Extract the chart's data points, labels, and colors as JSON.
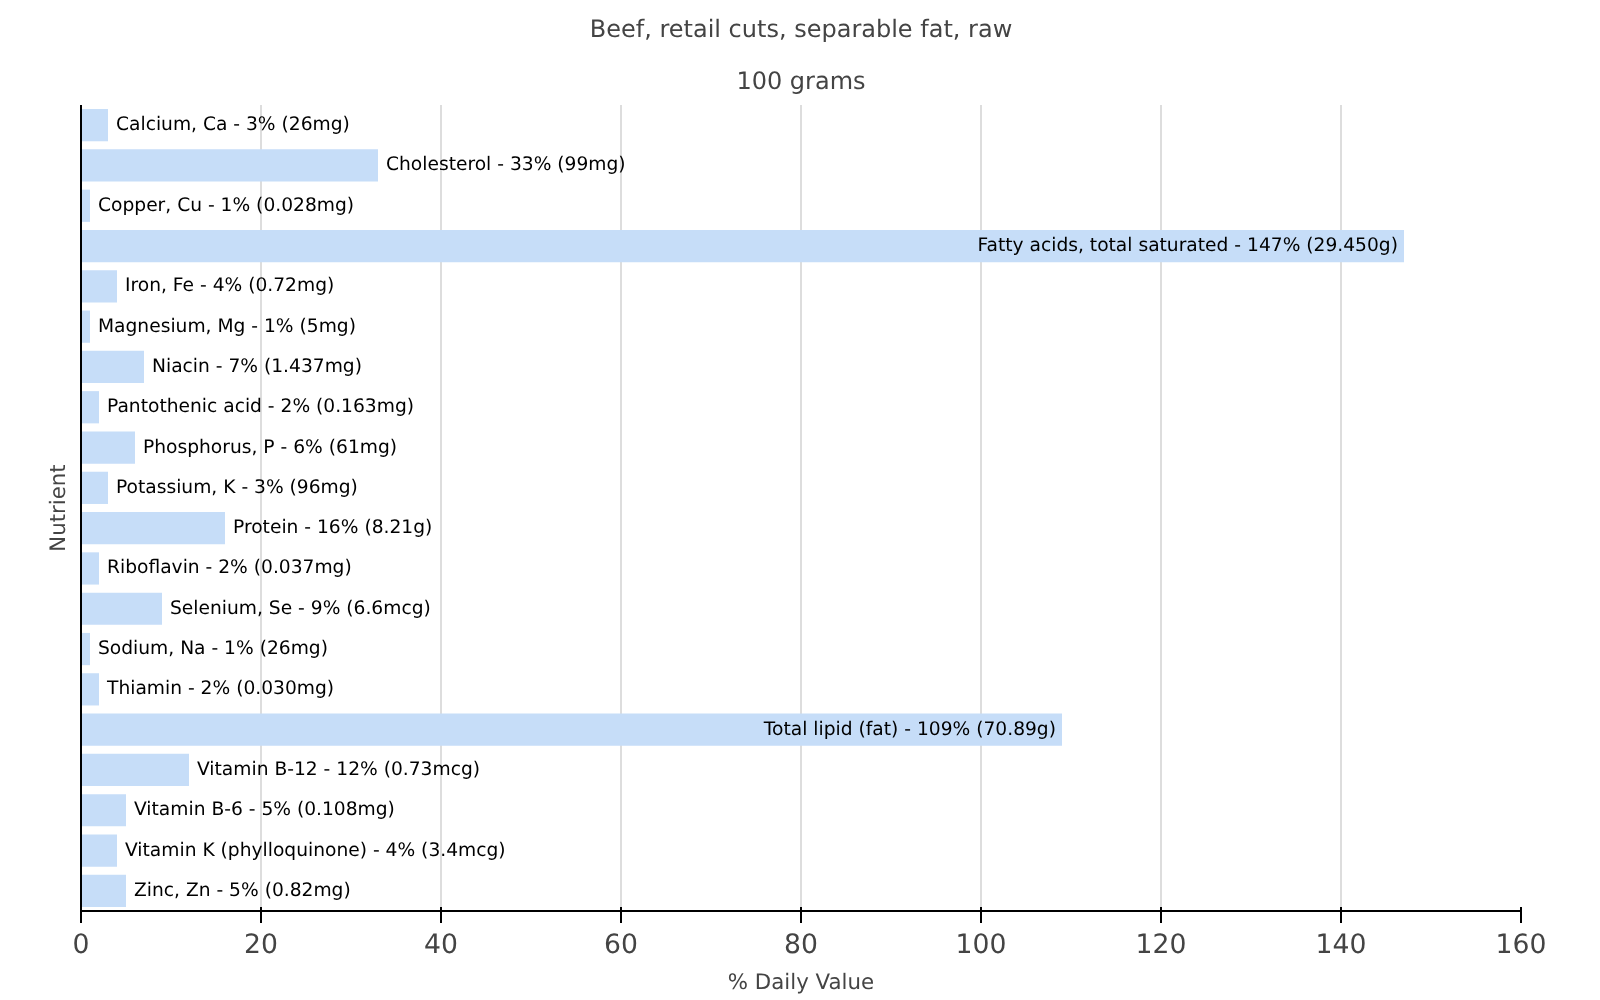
{
  "chart_data": {
    "type": "bar",
    "orientation": "horizontal",
    "title": "Beef, retail cuts, separable fat, raw",
    "subtitle": "100 grams",
    "xlabel": "% Daily Value",
    "ylabel": "Nutrient",
    "categories": [
      null,
      null,
      null,
      null,
      null,
      null,
      null,
      null,
      null,
      null,
      null,
      null,
      null,
      null,
      null,
      null,
      null,
      null,
      null,
      null
    ],
    "values": [
      3,
      33,
      1,
      147,
      4,
      1,
      7,
      2,
      6,
      3,
      16,
      2,
      9,
      1,
      2,
      109,
      12,
      5,
      4,
      5
    ],
    "annotations": [
      {
        "text": "Calcium, Ca - 3% (26mg)",
        "x": 3
      },
      {
        "text": "Cholesterol - 33% (99mg)",
        "x": 33
      },
      {
        "text": "Copper, Cu - 1% (0.028mg)",
        "x": 1
      },
      {
        "text": "Fatty acids, total saturated - 147% (29.450g)",
        "x": 147
      },
      {
        "text": "Iron, Fe - 4% (0.72mg)",
        "x": 4
      },
      {
        "text": "Magnesium, Mg - 1% (5mg)",
        "x": 1
      },
      {
        "text": "Niacin - 7% (1.437mg)",
        "x": 7
      },
      {
        "text": "Pantothenic acid - 2% (0.163mg)",
        "x": 2
      },
      {
        "text": "Phosphorus, P - 6% (61mg)",
        "x": 6
      },
      {
        "text": "Potassium, K - 3% (96mg)",
        "x": 3
      },
      {
        "text": "Protein - 16% (8.21g)",
        "x": 16
      },
      {
        "text": "Riboflavin - 2% (0.037mg)",
        "x": 2
      },
      {
        "text": "Selenium, Se - 9% (6.6mcg)",
        "x": 9
      },
      {
        "text": "Sodium, Na - 1% (26mg)",
        "x": 1
      },
      {
        "text": "Thiamin - 2% (0.030mg)",
        "x": 2
      },
      {
        "text": "Total lipid (fat) - 109% (70.89g)",
        "x": 109
      },
      {
        "text": "Vitamin B-12 - 12% (0.73mcg)",
        "x": 12
      },
      {
        "text": "Vitamin B-6 - 5% (0.108mg)",
        "x": 5
      },
      {
        "text": "Vitamin K (phylloquinone) - 4% (3.4mcg)",
        "x": 4
      },
      {
        "text": "Zinc, Zn - 5% (0.82mg)",
        "x": 5
      }
    ],
    "color": "#c6ddf8",
    "xlim": [
      0,
      160
    ],
    "xticks": [
      0,
      20,
      40,
      60,
      80,
      100,
      120,
      140,
      160
    ],
    "grid": "x",
    "tick_labels": "x"
  }
}
